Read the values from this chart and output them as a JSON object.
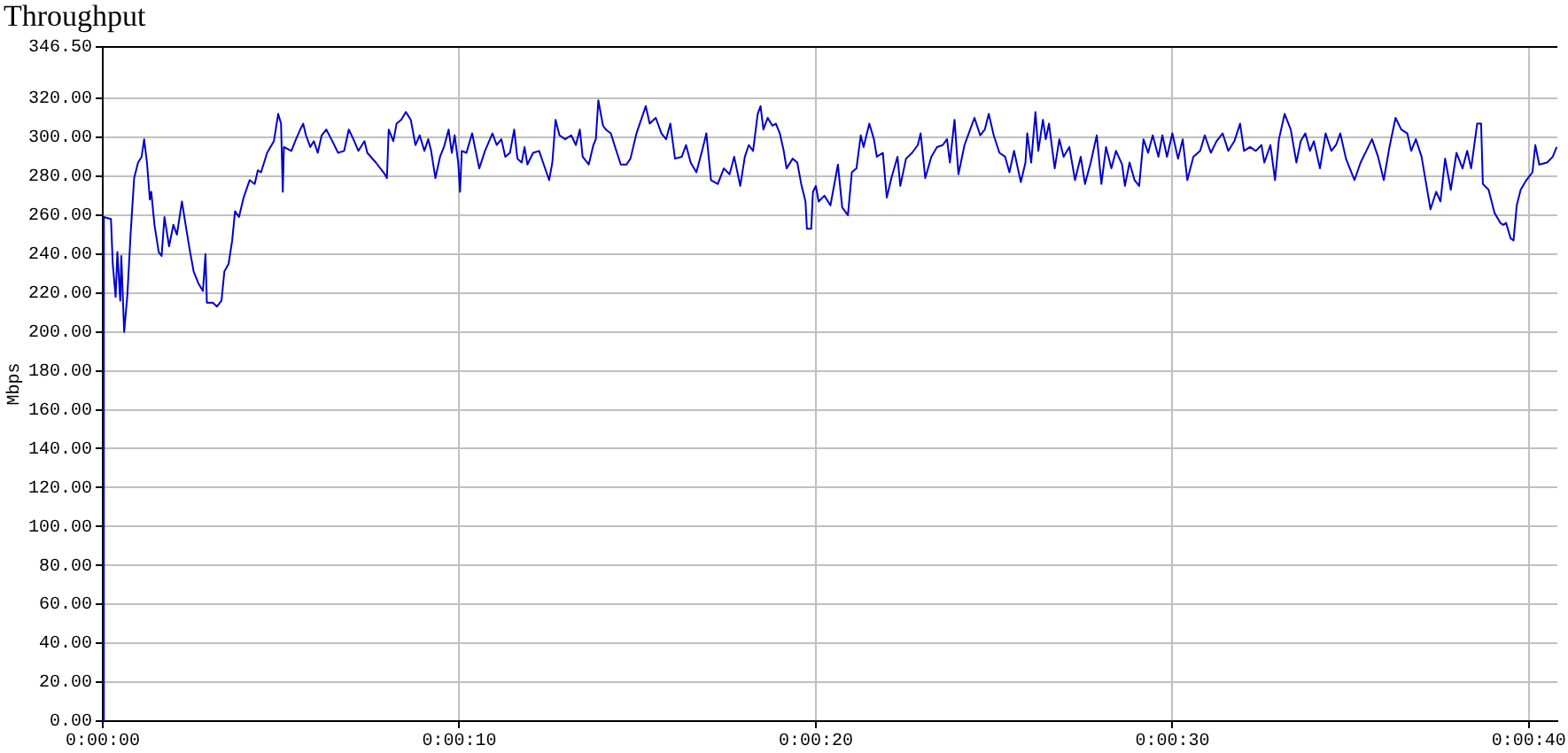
{
  "chart_data": {
    "type": "line",
    "title": "Throughput",
    "ylabel": "Mbps",
    "color": "#0000cc",
    "marker": "none",
    "grid": true,
    "xlim": [
      0,
      40.8
    ],
    "ylim": [
      0,
      346.5
    ],
    "xticks": [
      {
        "value": 0,
        "label": "0:00:00"
      },
      {
        "value": 10,
        "label": "0:00:10"
      },
      {
        "value": 20,
        "label": "0:00:20"
      },
      {
        "value": 30,
        "label": "0:00:30"
      },
      {
        "value": 40,
        "label": "0:00:40"
      }
    ],
    "yticks": [
      {
        "value": 0,
        "label": "0.00"
      },
      {
        "value": 20,
        "label": "20.00"
      },
      {
        "value": 40,
        "label": "40.00"
      },
      {
        "value": 60,
        "label": "60.00"
      },
      {
        "value": 80,
        "label": "80.00"
      },
      {
        "value": 100,
        "label": "100.00"
      },
      {
        "value": 120,
        "label": "120.00"
      },
      {
        "value": 140,
        "label": "140.00"
      },
      {
        "value": 160,
        "label": "160.00"
      },
      {
        "value": 180,
        "label": "180.00"
      },
      {
        "value": 200,
        "label": "200.00"
      },
      {
        "value": 220,
        "label": "220.00"
      },
      {
        "value": 240,
        "label": "240.00"
      },
      {
        "value": 260,
        "label": "260.00"
      },
      {
        "value": 280,
        "label": "280.00"
      },
      {
        "value": 300,
        "label": "300.00"
      },
      {
        "value": 320,
        "label": "320.00"
      },
      {
        "value": 346.5,
        "label": "346.50"
      }
    ],
    "x": [
      0,
      0.03,
      0.23,
      0.28,
      0.36,
      0.41,
      0.49,
      0.52,
      0.6,
      0.69,
      0.78,
      0.88,
      0.99,
      1.09,
      1.16,
      1.24,
      1.32,
      1.36,
      1.45,
      1.57,
      1.65,
      1.73,
      1.86,
      1.98,
      2.08,
      2.22,
      2.35,
      2.45,
      2.55,
      2.68,
      2.81,
      2.88,
      2.92,
      3.09,
      3.2,
      3.33,
      3.41,
      3.53,
      3.63,
      3.71,
      3.82,
      3.95,
      4.12,
      4.26,
      4.35,
      4.44,
      4.61,
      4.8,
      4.92,
      5,
      5.05,
      5.08,
      5.29,
      5.42,
      5.54,
      5.62,
      5.7,
      5.82,
      5.92,
      6.03,
      6.14,
      6.27,
      6.44,
      6.6,
      6.77,
      6.9,
      7.03,
      7.17,
      7.34,
      7.42,
      7.66,
      7.91,
      7.97,
      8.02,
      8.15,
      8.24,
      8.37,
      8.5,
      8.64,
      8.77,
      8.89,
      9.02,
      9.13,
      9.21,
      9.33,
      9.46,
      9.57,
      9.7,
      9.79,
      9.87,
      9.97,
      10.02,
      10.07,
      10.2,
      10.36,
      10.56,
      10.72,
      10.93,
      11.05,
      11.18,
      11.29,
      11.42,
      11.54,
      11.63,
      11.75,
      11.83,
      11.91,
      12.07,
      12.24,
      12.35,
      12.52,
      12.61,
      12.7,
      12.81,
      12.97,
      13.14,
      13.27,
      13.38,
      13.46,
      13.63,
      13.76,
      13.83,
      13.9,
      14.03,
      14.11,
      14.25,
      14.37,
      14.53,
      14.69,
      14.8,
      14.97,
      15.1,
      15.23,
      15.34,
      15.51,
      15.67,
      15.8,
      15.92,
      16.05,
      16.24,
      16.36,
      16.49,
      16.65,
      16.81,
      16.93,
      17.06,
      17.25,
      17.42,
      17.58,
      17.71,
      17.88,
      18.01,
      18.12,
      18.24,
      18.37,
      18.45,
      18.53,
      18.65,
      18.78,
      18.88,
      18.99,
      19.1,
      19.18,
      19.35,
      19.48,
      19.59,
      19.71,
      19.75,
      19.87,
      19.92,
      20,
      20.08,
      20.24,
      20.41,
      20.49,
      20.62,
      20.74,
      20.9,
      21.01,
      21.14,
      21.26,
      21.34,
      21.5,
      21.63,
      21.71,
      21.88,
      21.99,
      22.12,
      22.29,
      22.37,
      22.53,
      22.7,
      22.86,
      22.94,
      23.07,
      23.24,
      23.4,
      23.56,
      23.68,
      23.76,
      23.89,
      24,
      24.17,
      24.33,
      24.45,
      24.61,
      24.74,
      24.85,
      24.99,
      25.15,
      25.31,
      25.43,
      25.56,
      25.75,
      25.88,
      25.93,
      26.04,
      26.16,
      26.24,
      26.37,
      26.45,
      26.54,
      26.7,
      26.83,
      26.95,
      27.11,
      27.27,
      27.43,
      27.55,
      27.71,
      27.88,
      28.01,
      28.14,
      28.29,
      28.42,
      28.59,
      28.67,
      28.8,
      28.94,
      29.07,
      29.19,
      29.32,
      29.45,
      29.61,
      29.72,
      29.85,
      30,
      30.16,
      30.29,
      30.42,
      30.59,
      30.78,
      30.91,
      31.08,
      31.24,
      31.41,
      31.57,
      31.74,
      31.9,
      32.01,
      32.18,
      32.34,
      32.5,
      32.58,
      32.75,
      32.88,
      32.99,
      33.15,
      33.32,
      33.48,
      33.6,
      33.73,
      33.86,
      33.97,
      34.14,
      34.3,
      34.46,
      34.59,
      34.71,
      34.87,
      35.11,
      35.28,
      35.44,
      35.6,
      35.77,
      35.93,
      36.09,
      36.26,
      36.42,
      36.59,
      36.7,
      36.83,
      36.99,
      37.12,
      37.24,
      37.4,
      37.52,
      37.65,
      37.81,
      37.97,
      38.14,
      38.27,
      38.38,
      38.55,
      38.66,
      38.71,
      38.87,
      39.04,
      39.2,
      39.28,
      39.36,
      39.49,
      39.57,
      39.66,
      39.77,
      39.93,
      40.1,
      40.18,
      40.29,
      40.51,
      40.67,
      40.78
    ],
    "values": [
      0,
      259,
      258,
      235,
      218,
      241,
      216,
      239,
      200,
      219,
      250,
      279,
      287,
      290,
      299,
      287,
      268,
      272,
      255,
      241,
      239,
      259,
      244,
      255,
      250,
      267,
      252,
      241,
      231,
      225,
      221,
      240,
      215,
      215,
      213,
      216,
      231,
      235,
      247,
      262,
      259,
      269,
      278,
      276,
      283,
      282,
      292,
      298,
      312,
      307,
      272,
      295,
      293,
      299,
      304,
      307,
      301,
      295,
      298,
      292,
      301,
      304,
      298,
      292,
      293,
      304,
      299,
      293,
      298,
      292,
      287,
      281,
      279,
      304,
      298,
      307,
      309,
      313,
      309,
      296,
      301,
      293,
      299,
      293,
      279,
      290,
      295,
      304,
      292,
      301,
      287,
      272,
      293,
      292,
      302,
      284,
      293,
      302,
      296,
      299,
      290,
      292,
      304,
      289,
      287,
      295,
      286,
      292,
      293,
      287,
      278,
      287,
      309,
      301,
      299,
      301,
      296,
      304,
      290,
      286,
      296,
      299,
      319,
      306,
      304,
      302,
      295,
      286,
      286,
      289,
      302,
      309,
      316,
      307,
      310,
      302,
      299,
      307,
      289,
      290,
      296,
      287,
      282,
      293,
      302,
      278,
      276,
      284,
      281,
      290,
      275,
      290,
      296,
      293,
      312,
      316,
      304,
      310,
      306,
      307,
      302,
      293,
      284,
      289,
      287,
      276,
      267,
      253,
      253,
      272,
      275,
      267,
      270,
      265,
      273,
      286,
      264,
      260,
      282,
      284,
      301,
      295,
      307,
      299,
      290,
      292,
      269,
      279,
      290,
      275,
      289,
      292,
      296,
      302,
      279,
      290,
      295,
      296,
      299,
      287,
      309,
      281,
      296,
      304,
      310,
      301,
      304,
      312,
      301,
      292,
      290,
      282,
      293,
      277,
      287,
      302,
      287,
      313,
      293,
      309,
      299,
      307,
      284,
      299,
      290,
      295,
      278,
      290,
      276,
      287,
      301,
      276,
      295,
      284,
      293,
      286,
      275,
      287,
      278,
      275,
      299,
      292,
      301,
      290,
      301,
      290,
      302,
      289,
      299,
      278,
      290,
      293,
      301,
      292,
      298,
      302,
      293,
      298,
      307,
      293,
      295,
      293,
      296,
      287,
      296,
      278,
      299,
      312,
      304,
      287,
      298,
      302,
      293,
      298,
      284,
      302,
      293,
      296,
      302,
      289,
      278,
      287,
      293,
      299,
      290,
      278,
      295,
      310,
      304,
      302,
      293,
      299,
      290,
      276,
      263,
      272,
      267,
      289,
      273,
      292,
      284,
      293,
      284,
      307,
      307,
      276,
      273,
      261,
      256,
      255,
      256,
      248,
      247,
      265,
      273,
      278,
      282,
      296,
      286,
      287,
      290,
      295
    ]
  }
}
